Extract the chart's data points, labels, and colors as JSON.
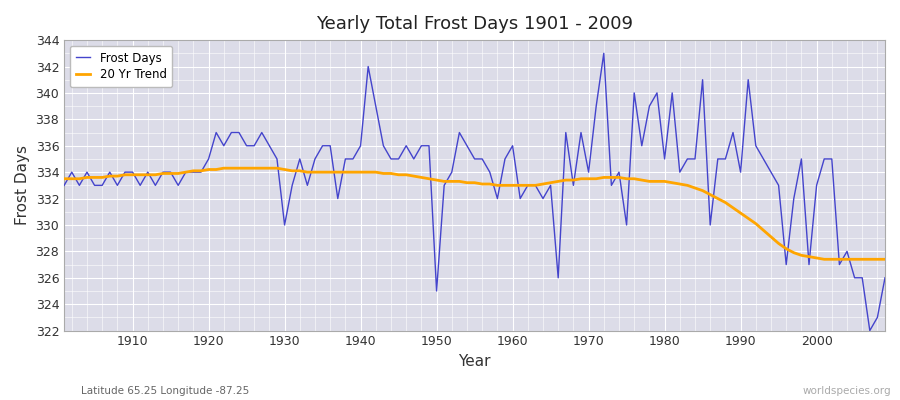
{
  "title": "Yearly Total Frost Days 1901 - 2009",
  "xlabel": "Year",
  "ylabel": "Frost Days",
  "bg_color": "#dcdce8",
  "fig_color": "#ffffff",
  "line_color": "#4444cc",
  "trend_color": "#ffa500",
  "years": [
    1901,
    1902,
    1903,
    1904,
    1905,
    1906,
    1907,
    1908,
    1909,
    1910,
    1911,
    1912,
    1913,
    1914,
    1915,
    1916,
    1917,
    1918,
    1919,
    1920,
    1921,
    1922,
    1923,
    1924,
    1925,
    1926,
    1927,
    1928,
    1929,
    1930,
    1931,
    1932,
    1933,
    1934,
    1935,
    1936,
    1937,
    1938,
    1939,
    1940,
    1941,
    1942,
    1943,
    1944,
    1945,
    1946,
    1947,
    1948,
    1949,
    1950,
    1951,
    1952,
    1953,
    1954,
    1955,
    1956,
    1957,
    1958,
    1959,
    1960,
    1961,
    1962,
    1963,
    1964,
    1965,
    1966,
    1967,
    1968,
    1969,
    1970,
    1971,
    1972,
    1973,
    1974,
    1975,
    1976,
    1977,
    1978,
    1979,
    1980,
    1981,
    1982,
    1983,
    1984,
    1985,
    1986,
    1987,
    1988,
    1989,
    1990,
    1991,
    1992,
    1993,
    1994,
    1995,
    1996,
    1997,
    1998,
    1999,
    2000,
    2001,
    2002,
    2003,
    2004,
    2005,
    2006,
    2007,
    2008,
    2009
  ],
  "frost_days": [
    333,
    334,
    333,
    334,
    333,
    333,
    334,
    333,
    334,
    334,
    333,
    334,
    333,
    334,
    334,
    333,
    334,
    334,
    334,
    335,
    337,
    336,
    337,
    337,
    336,
    336,
    337,
    336,
    335,
    330,
    333,
    335,
    333,
    335,
    336,
    336,
    332,
    335,
    335,
    336,
    342,
    339,
    336,
    335,
    335,
    336,
    335,
    336,
    336,
    325,
    333,
    334,
    337,
    336,
    335,
    335,
    334,
    332,
    335,
    336,
    332,
    333,
    333,
    332,
    333,
    326,
    337,
    333,
    337,
    334,
    339,
    343,
    333,
    334,
    330,
    340,
    336,
    339,
    340,
    335,
    340,
    334,
    335,
    335,
    341,
    330,
    335,
    335,
    337,
    334,
    341,
    336,
    335,
    334,
    333,
    327,
    332,
    335,
    327,
    333,
    335,
    335,
    327,
    328,
    326,
    326,
    322,
    323,
    326
  ],
  "trend": [
    333.5,
    333.5,
    333.5,
    333.6,
    333.6,
    333.6,
    333.7,
    333.7,
    333.8,
    333.8,
    333.8,
    333.8,
    333.8,
    333.9,
    333.9,
    333.9,
    334.0,
    334.1,
    334.1,
    334.2,
    334.2,
    334.3,
    334.3,
    334.3,
    334.3,
    334.3,
    334.3,
    334.3,
    334.3,
    334.2,
    334.1,
    334.1,
    334.0,
    334.0,
    334.0,
    334.0,
    334.0,
    334.0,
    334.0,
    334.0,
    334.0,
    334.0,
    333.9,
    333.9,
    333.8,
    333.8,
    333.7,
    333.6,
    333.5,
    333.4,
    333.3,
    333.3,
    333.3,
    333.2,
    333.2,
    333.1,
    333.1,
    333.0,
    333.0,
    333.0,
    333.0,
    333.0,
    333.0,
    333.1,
    333.2,
    333.3,
    333.4,
    333.4,
    333.5,
    333.5,
    333.5,
    333.6,
    333.6,
    333.6,
    333.5,
    333.5,
    333.4,
    333.3,
    333.3,
    333.3,
    333.2,
    333.1,
    333.0,
    332.8,
    332.6,
    332.3,
    332.0,
    331.7,
    331.3,
    330.9,
    330.5,
    330.1,
    329.6,
    329.1,
    328.6,
    328.2,
    327.9,
    327.7,
    327.6,
    327.5,
    327.4,
    327.4,
    327.4,
    327.4,
    327.4,
    327.4,
    327.4,
    327.4,
    327.4
  ],
  "ylim": [
    322,
    344
  ],
  "yticks": [
    322,
    324,
    326,
    328,
    330,
    332,
    334,
    336,
    338,
    340,
    342,
    344
  ],
  "xticks": [
    1910,
    1920,
    1930,
    1940,
    1950,
    1960,
    1970,
    1980,
    1990,
    2000
  ],
  "subtitle": "Latitude 65.25 Longitude -87.25",
  "watermark": "worldspecies.org",
  "legend_items": [
    "Frost Days",
    "20 Yr Trend"
  ]
}
